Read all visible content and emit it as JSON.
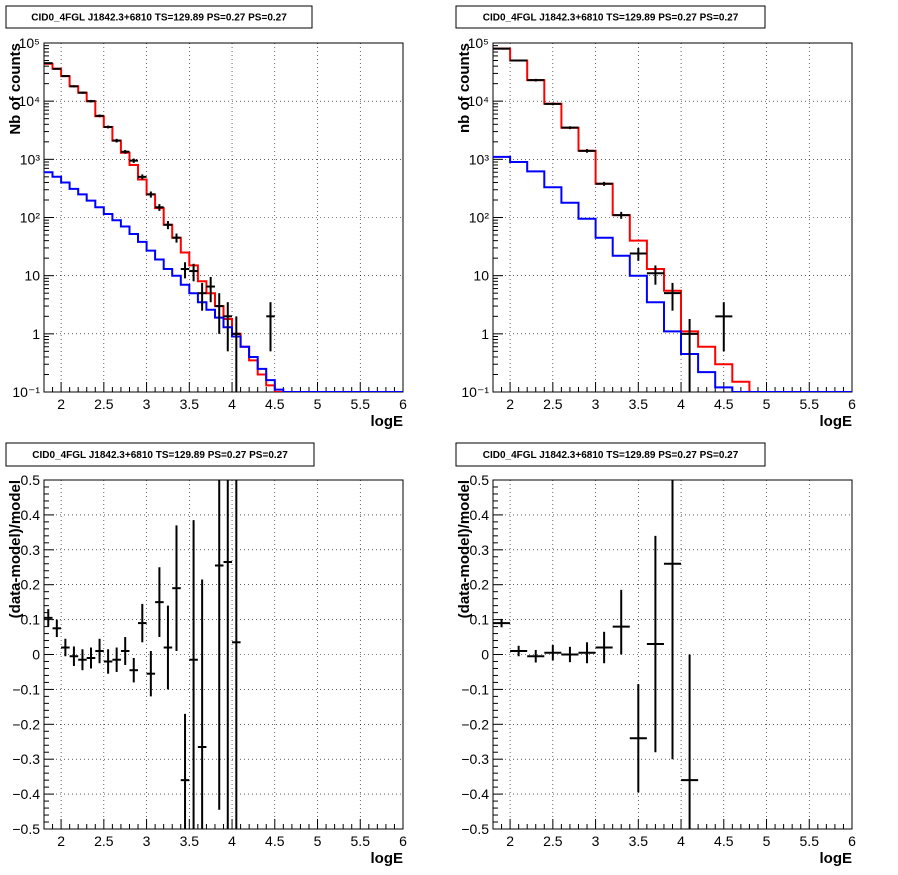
{
  "chart_data": [
    {
      "type": "line",
      "title": "CID0_4FGL J1842.3+6810 TS=129.89 PS=0.27 PS=0.27",
      "xlabel": "logE",
      "ylabel": "Nb of counts",
      "yscale": "log",
      "xlim": [
        1.8,
        6.0
      ],
      "ylim": [
        0.1,
        100000
      ],
      "xticks": [
        "2",
        "2.5",
        "3",
        "3.5",
        "4",
        "4.5",
        "5",
        "5.5",
        "6"
      ],
      "yticks": [
        "10⁻¹",
        "1",
        "10",
        "10²",
        "10³",
        "10⁴",
        "10⁵"
      ],
      "grid": true,
      "bin_edges": [
        1.8,
        1.9,
        2.0,
        2.1,
        2.2,
        2.3,
        2.4,
        2.5,
        2.6,
        2.7,
        2.8,
        2.9,
        3.0,
        3.1,
        3.2,
        3.3,
        3.4,
        3.5,
        3.6,
        3.7,
        3.8,
        3.9,
        4.0,
        4.1,
        4.2,
        4.3,
        4.4,
        4.5,
        4.6,
        4.7,
        4.8,
        4.9,
        5.0,
        5.1,
        5.2,
        5.3,
        5.4,
        5.5,
        5.6,
        5.7,
        5.8,
        5.9,
        6.0
      ],
      "series": [
        {
          "color": "#ff0000",
          "values": [
            44000,
            36000,
            27000,
            18000,
            14000,
            10000,
            5500,
            3600,
            2100,
            1300,
            800,
            450,
            250,
            145,
            75,
            45,
            25,
            15,
            8,
            5,
            3,
            1.8,
            1.0,
            0.6,
            0.35,
            0.2,
            0.13,
            0.1,
            0.1,
            0.1,
            0.1,
            0.1,
            0.1,
            0.1,
            0.1,
            0.1,
            0.1,
            0.1,
            0.1,
            0.1,
            0.1,
            0.1
          ]
        },
        {
          "color": "#0000ff",
          "values": [
            600,
            500,
            400,
            310,
            250,
            195,
            150,
            115,
            90,
            70,
            52,
            38,
            27,
            19,
            13,
            10,
            7,
            5,
            3.5,
            2.6,
            1.9,
            1.3,
            0.9,
            0.6,
            0.4,
            0.25,
            0.16,
            0.11,
            0.1,
            0.1,
            0.1,
            0.1,
            0.1,
            0.1,
            0.1,
            0.1,
            0.1,
            0.1,
            0.1,
            0.1,
            0.1,
            0.1
          ]
        }
      ],
      "points": [
        {
          "x": 1.85,
          "y": 45000,
          "yerr": [
            1200,
            1200
          ],
          "xerr": 0.05
        },
        {
          "x": 1.95,
          "y": 36000,
          "yerr": [
            1000,
            1000
          ],
          "xerr": 0.05
        },
        {
          "x": 2.05,
          "y": 27000,
          "yerr": [
            900,
            900
          ],
          "xerr": 0.05
        },
        {
          "x": 2.15,
          "y": 18000,
          "yerr": [
            700,
            700
          ],
          "xerr": 0.05
        },
        {
          "x": 2.25,
          "y": 14000,
          "yerr": [
            600,
            600
          ],
          "xerr": 0.05
        },
        {
          "x": 2.35,
          "y": 10000,
          "yerr": [
            500,
            500
          ],
          "xerr": 0.05
        },
        {
          "x": 2.45,
          "y": 5600,
          "yerr": [
            300,
            300
          ],
          "xerr": 0.05
        },
        {
          "x": 2.55,
          "y": 3600,
          "yerr": [
            200,
            200
          ],
          "xerr": 0.05
        },
        {
          "x": 2.65,
          "y": 2100,
          "yerr": [
            150,
            150
          ],
          "xerr": 0.05
        },
        {
          "x": 2.75,
          "y": 1350,
          "yerr": [
            100,
            100
          ],
          "xerr": 0.05
        },
        {
          "x": 2.85,
          "y": 950,
          "yerr": [
            80,
            80
          ],
          "xerr": 0.05
        },
        {
          "x": 2.95,
          "y": 500,
          "yerr": [
            50,
            50
          ],
          "xerr": 0.05
        },
        {
          "x": 3.05,
          "y": 250,
          "yerr": [
            30,
            30
          ],
          "xerr": 0.05
        },
        {
          "x": 3.15,
          "y": 150,
          "yerr": [
            20,
            20
          ],
          "xerr": 0.05
        },
        {
          "x": 3.25,
          "y": 75,
          "yerr": [
            12,
            12
          ],
          "xerr": 0.05
        },
        {
          "x": 3.35,
          "y": 45,
          "yerr": [
            8,
            8
          ],
          "xerr": 0.05
        },
        {
          "x": 3.45,
          "y": 13,
          "yerr": [
            4,
            4
          ],
          "xerr": 0.05
        },
        {
          "x": 3.55,
          "y": 12,
          "yerr": [
            4,
            4
          ],
          "xerr": 0.05
        },
        {
          "x": 3.65,
          "y": 5,
          "yerr": [
            2.5,
            2.5
          ],
          "xerr": 0.05
        },
        {
          "x": 3.75,
          "y": 6.5,
          "yerr": [
            3,
            3
          ],
          "xerr": 0.05
        },
        {
          "x": 3.85,
          "y": 3,
          "yerr": [
            2,
            2
          ],
          "xerr": 0.05
        },
        {
          "x": 3.95,
          "y": 2,
          "yerr": [
            1.5,
            1.5
          ],
          "xerr": 0.05
        },
        {
          "x": 4.05,
          "y": 1,
          "yerr": [
            0.95,
            1
          ],
          "xerr": 0.05
        },
        {
          "x": 4.45,
          "y": 2,
          "yerr": [
            1.5,
            1.5
          ],
          "xerr": 0.05
        }
      ]
    },
    {
      "type": "line",
      "title": "CID0_4FGL J1842.3+6810 TS=129.89 PS=0.27 PS=0.27",
      "xlabel": "logE",
      "ylabel": "nb of counts",
      "yscale": "log",
      "xlim": [
        1.8,
        6.0
      ],
      "ylim": [
        0.1,
        100000
      ],
      "xticks": [
        "2",
        "2.5",
        "3",
        "3.5",
        "4",
        "4.5",
        "5",
        "5.5",
        "6"
      ],
      "yticks": [
        "10⁻¹",
        "1",
        "10",
        "10²",
        "10³",
        "10⁴",
        "10⁵"
      ],
      "grid": true,
      "bin_edges": [
        1.8,
        2.0,
        2.2,
        2.4,
        2.6,
        2.8,
        3.0,
        3.2,
        3.4,
        3.6,
        3.8,
        4.0,
        4.2,
        4.4,
        4.6,
        4.8,
        5.0,
        5.2,
        5.4,
        5.6,
        5.8,
        6.0
      ],
      "series": [
        {
          "color": "#ff0000",
          "values": [
            80000,
            50000,
            23000,
            9000,
            3500,
            1400,
            380,
            110,
            40,
            13,
            5.5,
            1.1,
            0.6,
            0.3,
            0.15,
            0.1,
            0.1,
            0.1,
            0.1,
            0.1,
            0.1
          ]
        },
        {
          "color": "#0000ff",
          "values": [
            1100,
            900,
            620,
            330,
            180,
            95,
            45,
            22,
            10,
            3.5,
            1.1,
            0.45,
            0.22,
            0.12,
            0.1,
            0.1,
            0.1,
            0.1,
            0.1,
            0.1,
            0.1
          ]
        }
      ],
      "points": [
        {
          "x": 1.9,
          "y": 80000,
          "yerr": [
            2500,
            2500
          ],
          "xerr": 0.1
        },
        {
          "x": 2.1,
          "y": 50000,
          "yerr": [
            2000,
            2000
          ],
          "xerr": 0.1
        },
        {
          "x": 2.3,
          "y": 23000,
          "yerr": [
            1200,
            1200
          ],
          "xerr": 0.1
        },
        {
          "x": 2.5,
          "y": 9000,
          "yerr": [
            500,
            500
          ],
          "xerr": 0.1
        },
        {
          "x": 2.7,
          "y": 3500,
          "yerr": [
            200,
            200
          ],
          "xerr": 0.1
        },
        {
          "x": 2.9,
          "y": 1400,
          "yerr": [
            100,
            100
          ],
          "xerr": 0.1
        },
        {
          "x": 3.1,
          "y": 380,
          "yerr": [
            30,
            30
          ],
          "xerr": 0.1
        },
        {
          "x": 3.3,
          "y": 110,
          "yerr": [
            15,
            15
          ],
          "xerr": 0.1
        },
        {
          "x": 3.5,
          "y": 24,
          "yerr": [
            6,
            6
          ],
          "xerr": 0.1
        },
        {
          "x": 3.7,
          "y": 11,
          "yerr": [
            4,
            4
          ],
          "xerr": 0.1
        },
        {
          "x": 3.9,
          "y": 5,
          "yerr": [
            2.5,
            2.5
          ],
          "xerr": 0.1
        },
        {
          "x": 4.1,
          "y": 1,
          "yerr": [
            0.95,
            0.8
          ],
          "xerr": 0.1
        },
        {
          "x": 4.5,
          "y": 2,
          "yerr": [
            1.5,
            1.5
          ],
          "xerr": 0.1
        }
      ]
    },
    {
      "type": "scatter",
      "title": "CID0_4FGL J1842.3+6810 TS=129.89 PS=0.27 PS=0.27",
      "xlabel": "logE",
      "ylabel": "(data-model)/model",
      "xlim": [
        1.8,
        6.0
      ],
      "ylim": [
        -0.5,
        0.5
      ],
      "xticks": [
        "2",
        "2.5",
        "3",
        "3.5",
        "4",
        "4.5",
        "5",
        "5.5",
        "6"
      ],
      "yticks": [
        "−0.5",
        "−0.4",
        "−0.3",
        "−0.2",
        "−0.1",
        "0",
        "0.1",
        "0.2",
        "0.3",
        "0.4",
        "0.5"
      ],
      "grid": true,
      "points": [
        {
          "x": 1.85,
          "y": 0.105,
          "yerr": [
            0.025,
            0.025
          ],
          "xerr": 0.05
        },
        {
          "x": 1.95,
          "y": 0.075,
          "yerr": [
            0.025,
            0.025
          ],
          "xerr": 0.05
        },
        {
          "x": 2.05,
          "y": 0.02,
          "yerr": [
            0.025,
            0.025
          ],
          "xerr": 0.05
        },
        {
          "x": 2.15,
          "y": -0.005,
          "yerr": [
            0.028,
            0.028
          ],
          "xerr": 0.05
        },
        {
          "x": 2.25,
          "y": -0.015,
          "yerr": [
            0.03,
            0.03
          ],
          "xerr": 0.05
        },
        {
          "x": 2.35,
          "y": -0.01,
          "yerr": [
            0.03,
            0.03
          ],
          "xerr": 0.05
        },
        {
          "x": 2.45,
          "y": 0.01,
          "yerr": [
            0.035,
            0.035
          ],
          "xerr": 0.05
        },
        {
          "x": 2.55,
          "y": -0.02,
          "yerr": [
            0.035,
            0.035
          ],
          "xerr": 0.05
        },
        {
          "x": 2.65,
          "y": -0.015,
          "yerr": [
            0.035,
            0.035
          ],
          "xerr": 0.05
        },
        {
          "x": 2.75,
          "y": 0.01,
          "yerr": [
            0.04,
            0.04
          ],
          "xerr": 0.05
        },
        {
          "x": 2.85,
          "y": -0.045,
          "yerr": [
            0.035,
            0.035
          ],
          "xerr": 0.05
        },
        {
          "x": 2.95,
          "y": 0.09,
          "yerr": [
            0.055,
            0.055
          ],
          "xerr": 0.05
        },
        {
          "x": 3.05,
          "y": -0.055,
          "yerr": [
            0.065,
            0.065
          ],
          "xerr": 0.05
        },
        {
          "x": 3.15,
          "y": 0.15,
          "yerr": [
            0.1,
            0.1
          ],
          "xerr": 0.05
        },
        {
          "x": 3.25,
          "y": 0.02,
          "yerr": [
            0.12,
            0.12
          ],
          "xerr": 0.05
        },
        {
          "x": 3.35,
          "y": 0.19,
          "yerr": [
            0.18,
            0.18
          ],
          "xerr": 0.05
        },
        {
          "x": 3.45,
          "y": -0.36,
          "yerr": [
            0.14,
            0.19
          ],
          "xerr": 0.05
        },
        {
          "x": 3.55,
          "y": -0.015,
          "yerr": [
            0.485,
            0.4
          ],
          "xerr": 0.05
        },
        {
          "x": 3.65,
          "y": -0.265,
          "yerr": [
            0.235,
            0.48
          ],
          "xerr": 0.05
        },
        {
          "x": 3.85,
          "y": 0.255,
          "yerr": [
            0.7,
            0.245
          ],
          "xerr": 0.05
        },
        {
          "x": 3.95,
          "y": 0.265,
          "yerr": [
            0.765,
            0.235
          ],
          "xerr": 0.05
        },
        {
          "x": 4.05,
          "y": 0.035,
          "yerr": [
            0.535,
            0.465
          ],
          "xerr": 0.05
        }
      ]
    },
    {
      "type": "scatter",
      "title": "CID0_4FGL J1842.3+6810 TS=129.89 PS=0.27 PS=0.27",
      "xlabel": "logE",
      "ylabel": "(data-model)/model",
      "xlim": [
        1.8,
        6.0
      ],
      "ylim": [
        -0.5,
        0.5
      ],
      "xticks": [
        "2",
        "2.5",
        "3",
        "3.5",
        "4",
        "4.5",
        "5",
        "5.5",
        "6"
      ],
      "yticks": [
        "−0.5",
        "−0.4",
        "−0.3",
        "−0.2",
        "−0.1",
        "0",
        "0.1",
        "0.2",
        "0.3",
        "0.4",
        "0.5"
      ],
      "grid": true,
      "points": [
        {
          "x": 1.9,
          "y": 0.09,
          "yerr": [
            0.012,
            0.012
          ],
          "xerr": 0.1
        },
        {
          "x": 2.1,
          "y": 0.01,
          "yerr": [
            0.015,
            0.015
          ],
          "xerr": 0.1
        },
        {
          "x": 2.3,
          "y": -0.005,
          "yerr": [
            0.018,
            0.018
          ],
          "xerr": 0.1
        },
        {
          "x": 2.5,
          "y": 0.005,
          "yerr": [
            0.022,
            0.022
          ],
          "xerr": 0.1
        },
        {
          "x": 2.7,
          "y": 0.0,
          "yerr": [
            0.022,
            0.022
          ],
          "xerr": 0.1
        },
        {
          "x": 2.9,
          "y": 0.005,
          "yerr": [
            0.03,
            0.03
          ],
          "xerr": 0.1
        },
        {
          "x": 3.1,
          "y": 0.02,
          "yerr": [
            0.045,
            0.045
          ],
          "xerr": 0.1
        },
        {
          "x": 3.3,
          "y": 0.08,
          "yerr": [
            0.08,
            0.105
          ],
          "xerr": 0.1
        },
        {
          "x": 3.5,
          "y": -0.24,
          "yerr": [
            0.155,
            0.155
          ],
          "xerr": 0.1
        },
        {
          "x": 3.7,
          "y": 0.03,
          "yerr": [
            0.31,
            0.31
          ],
          "xerr": 0.1
        },
        {
          "x": 3.9,
          "y": 0.26,
          "yerr": [
            0.56,
            0.24
          ],
          "xerr": 0.1
        },
        {
          "x": 4.1,
          "y": -0.36,
          "yerr": [
            0.14,
            0.36
          ],
          "xerr": 0.1
        }
      ]
    }
  ]
}
